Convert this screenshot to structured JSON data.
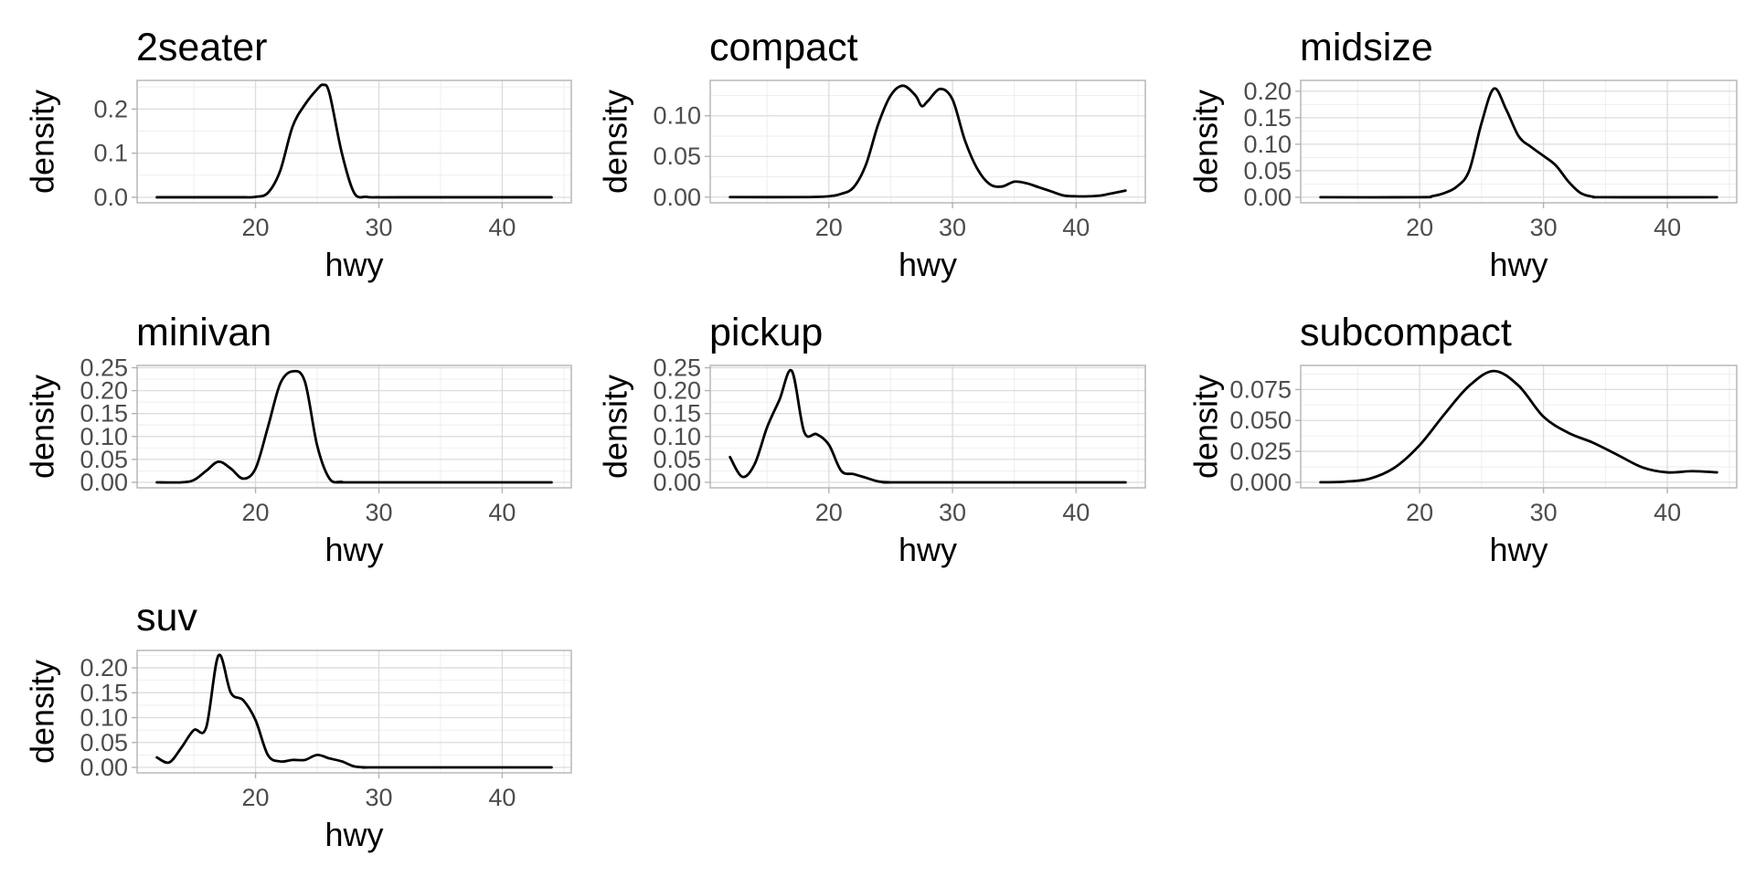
{
  "chart_data": [
    {
      "type": "line",
      "title": "2seater",
      "xlabel": "hwy",
      "ylabel": "density",
      "xlim": [
        10.4,
        45.6
      ],
      "ylim": [
        -0.0125,
        0.265
      ],
      "x_ticks": [
        "20",
        "30",
        "40"
      ],
      "x_tick_values": [
        20,
        30,
        40
      ],
      "y_ticks": [
        "0.0",
        "0.1",
        "0.2"
      ],
      "y_tick_values": [
        0,
        0.1,
        0.2
      ],
      "series": [
        {
          "x": [
            12,
            16,
            19,
            20,
            21,
            22,
            23,
            24,
            25,
            25.5,
            26,
            27,
            28,
            29,
            30,
            32,
            44
          ],
          "values": [
            0,
            0,
            0,
            0.001,
            0.01,
            0.06,
            0.16,
            0.21,
            0.245,
            0.255,
            0.235,
            0.1,
            0.01,
            0.001,
            0,
            0,
            0
          ]
        }
      ]
    },
    {
      "type": "line",
      "title": "compact",
      "xlabel": "hwy",
      "ylabel": "density",
      "xlim": [
        10.4,
        45.6
      ],
      "ylim": [
        -0.007,
        0.1435
      ],
      "x_ticks": [
        "20",
        "30",
        "40"
      ],
      "x_tick_values": [
        20,
        30,
        40
      ],
      "y_ticks": [
        "0.00",
        "0.05",
        "0.10"
      ],
      "y_tick_values": [
        0,
        0.05,
        0.1
      ],
      "series": [
        {
          "x": [
            12,
            18,
            20,
            21,
            22,
            23,
            24,
            25,
            26,
            27,
            27.5,
            28,
            29,
            30,
            31,
            32,
            33,
            34,
            35,
            36,
            37,
            38,
            39,
            40,
            41,
            42,
            43,
            44
          ],
          "values": [
            0,
            0,
            0.001,
            0.004,
            0.012,
            0.04,
            0.09,
            0.125,
            0.137,
            0.125,
            0.112,
            0.118,
            0.133,
            0.12,
            0.07,
            0.035,
            0.016,
            0.013,
            0.019,
            0.017,
            0.012,
            0.007,
            0.002,
            0.001,
            0.001,
            0.002,
            0.005,
            0.008
          ]
        }
      ]
    },
    {
      "type": "line",
      "title": "midsize",
      "xlabel": "hwy",
      "ylabel": "density",
      "xlim": [
        10.4,
        45.6
      ],
      "ylim": [
        -0.0105,
        0.2205
      ],
      "x_ticks": [
        "20",
        "30",
        "40"
      ],
      "x_tick_values": [
        20,
        30,
        40
      ],
      "y_ticks": [
        "0.00",
        "0.05",
        "0.10",
        "0.15",
        "0.20"
      ],
      "y_tick_values": [
        0,
        0.05,
        0.1,
        0.15,
        0.2
      ],
      "series": [
        {
          "x": [
            12,
            20,
            21,
            22,
            23,
            24,
            25,
            26,
            27,
            28,
            29,
            30,
            31,
            32,
            33,
            34,
            35,
            44
          ],
          "values": [
            0,
            0,
            0.002,
            0.008,
            0.02,
            0.05,
            0.14,
            0.205,
            0.165,
            0.115,
            0.095,
            0.078,
            0.06,
            0.03,
            0.008,
            0.001,
            0,
            0
          ]
        }
      ]
    },
    {
      "type": "line",
      "title": "minivan",
      "xlabel": "hwy",
      "ylabel": "density",
      "xlim": [
        10.4,
        45.6
      ],
      "ylim": [
        -0.012,
        0.255
      ],
      "x_ticks": [
        "20",
        "30",
        "40"
      ],
      "x_tick_values": [
        20,
        30,
        40
      ],
      "y_ticks": [
        "0.00",
        "0.05",
        "0.10",
        "0.15",
        "0.20",
        "0.25"
      ],
      "y_tick_values": [
        0,
        0.05,
        0.1,
        0.15,
        0.2,
        0.25
      ],
      "series": [
        {
          "x": [
            12,
            14,
            15,
            16,
            17,
            18,
            19,
            20,
            21,
            22,
            23,
            24,
            25,
            26,
            27,
            28,
            44
          ],
          "values": [
            0,
            0,
            0.005,
            0.025,
            0.045,
            0.03,
            0.008,
            0.03,
            0.12,
            0.215,
            0.242,
            0.22,
            0.08,
            0.008,
            0.001,
            0,
            0
          ]
        }
      ]
    },
    {
      "type": "line",
      "title": "pickup",
      "xlabel": "hwy",
      "ylabel": "density",
      "xlim": [
        10.4,
        45.6
      ],
      "ylim": [
        -0.012,
        0.255
      ],
      "x_ticks": [
        "20",
        "30",
        "40"
      ],
      "x_tick_values": [
        20,
        30,
        40
      ],
      "y_ticks": [
        "0.00",
        "0.05",
        "0.10",
        "0.15",
        "0.20",
        "0.25"
      ],
      "y_tick_values": [
        0,
        0.05,
        0.1,
        0.15,
        0.2,
        0.25
      ],
      "series": [
        {
          "x": [
            12,
            13,
            14,
            15,
            16,
            17,
            18,
            19,
            20,
            21,
            22,
            23,
            24,
            25,
            26,
            44
          ],
          "values": [
            0.055,
            0.012,
            0.04,
            0.12,
            0.18,
            0.243,
            0.11,
            0.105,
            0.082,
            0.025,
            0.018,
            0.01,
            0.002,
            0,
            0,
            0
          ]
        }
      ]
    },
    {
      "type": "line",
      "title": "subcompact",
      "xlabel": "hwy",
      "ylabel": "density",
      "xlim": [
        10.4,
        45.6
      ],
      "ylim": [
        -0.0045,
        0.0945
      ],
      "x_ticks": [
        "20",
        "30",
        "40"
      ],
      "x_tick_values": [
        20,
        30,
        40
      ],
      "y_ticks": [
        "0.000",
        "0.025",
        "0.050",
        "0.075"
      ],
      "y_tick_values": [
        0,
        0.025,
        0.05,
        0.075
      ],
      "series": [
        {
          "x": [
            12,
            14,
            16,
            18,
            20,
            22,
            24,
            26,
            28,
            30,
            32,
            34,
            36,
            38,
            40,
            42,
            44
          ],
          "values": [
            0,
            0.0005,
            0.003,
            0.012,
            0.03,
            0.055,
            0.078,
            0.09,
            0.078,
            0.053,
            0.04,
            0.032,
            0.022,
            0.012,
            0.008,
            0.009,
            0.008
          ]
        }
      ]
    },
    {
      "type": "line",
      "title": "suv",
      "xlabel": "hwy",
      "ylabel": "density",
      "xlim": [
        10.4,
        45.6
      ],
      "ylim": [
        -0.011,
        0.235
      ],
      "x_ticks": [
        "20",
        "30",
        "40"
      ],
      "x_tick_values": [
        20,
        30,
        40
      ],
      "y_ticks": [
        "0.00",
        "0.05",
        "0.10",
        "0.15",
        "0.20"
      ],
      "y_tick_values": [
        0,
        0.05,
        0.1,
        0.15,
        0.2
      ],
      "series": [
        {
          "x": [
            12,
            13,
            14,
            15,
            16,
            17,
            18,
            19,
            20,
            21,
            22,
            23,
            24,
            25,
            26,
            27,
            28,
            29,
            30,
            44
          ],
          "values": [
            0.02,
            0.01,
            0.04,
            0.075,
            0.08,
            0.225,
            0.15,
            0.135,
            0.095,
            0.025,
            0.012,
            0.015,
            0.015,
            0.025,
            0.018,
            0.012,
            0.002,
            0,
            0,
            0
          ]
        }
      ]
    }
  ]
}
